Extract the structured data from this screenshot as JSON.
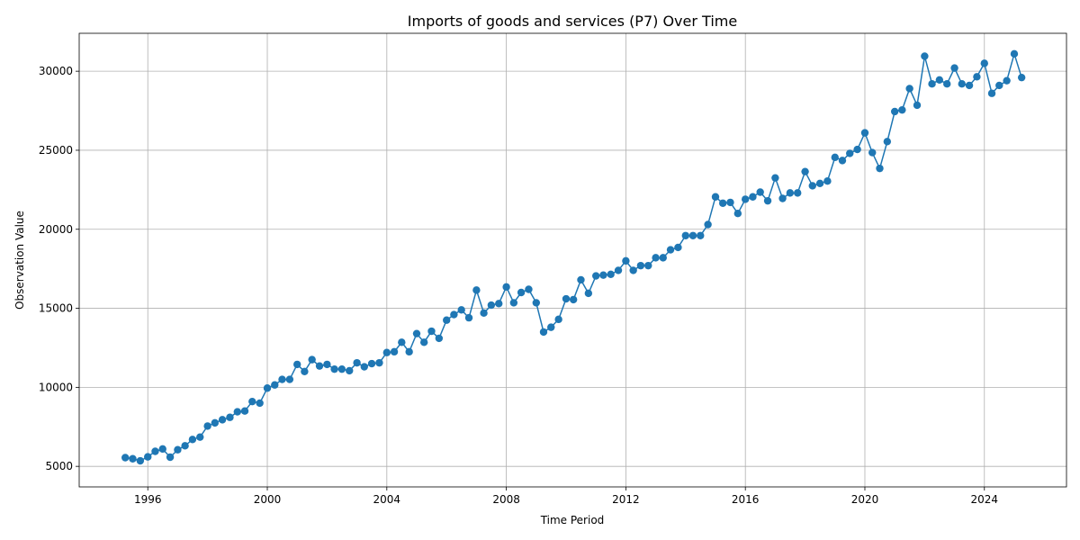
{
  "chart_data": {
    "type": "line",
    "title": "Imports of goods and services (P7) Over Time",
    "xlabel": "Time Period",
    "ylabel": "Observation Value",
    "x_ticks": [
      1996,
      2000,
      2004,
      2008,
      2012,
      2016,
      2020,
      2024
    ],
    "y_ticks": [
      5000,
      10000,
      15000,
      20000,
      25000,
      30000
    ],
    "xlim": [
      "1993-09-15",
      "2026-10-01"
    ],
    "ylim": [
      3700,
      32400
    ],
    "grid": true,
    "legend": "none",
    "color": "#1f77b4",
    "marker": "circle",
    "series": [
      {
        "x": [
          "1995-04-01",
          "1995-07-01",
          "1995-10-01",
          "1996-01-01",
          "1996-04-01",
          "1996-07-01",
          "1996-10-01",
          "1997-01-01",
          "1997-04-01",
          "1997-07-01",
          "1997-10-01",
          "1998-01-01",
          "1998-04-01",
          "1998-07-01",
          "1998-10-01",
          "1999-01-01",
          "1999-04-01",
          "1999-07-01",
          "1999-10-01",
          "2000-01-01",
          "2000-04-01",
          "2000-07-01",
          "2000-10-01",
          "2001-01-01",
          "2001-04-01",
          "2001-07-01",
          "2001-10-01",
          "2002-01-01",
          "2002-04-01",
          "2002-07-01",
          "2002-10-01",
          "2003-01-01",
          "2003-04-01",
          "2003-07-01",
          "2003-10-01",
          "2004-01-01",
          "2004-04-01",
          "2004-07-01",
          "2004-10-01",
          "2005-01-01",
          "2005-04-01",
          "2005-07-01",
          "2005-10-01",
          "2006-01-01",
          "2006-04-01",
          "2006-07-01",
          "2006-10-01",
          "2007-01-01",
          "2007-04-01",
          "2007-07-01",
          "2007-10-01",
          "2008-01-01",
          "2008-04-01",
          "2008-07-01",
          "2008-10-01",
          "2009-01-01",
          "2009-04-01",
          "2009-07-01",
          "2009-10-01",
          "2010-01-01",
          "2010-04-01",
          "2010-07-01",
          "2010-10-01",
          "2011-01-01",
          "2011-04-01",
          "2011-07-01",
          "2011-10-01",
          "2012-01-01",
          "2012-04-01",
          "2012-07-01",
          "2012-10-01",
          "2013-01-01",
          "2013-04-01",
          "2013-07-01",
          "2013-10-01",
          "2014-01-01",
          "2014-04-01",
          "2014-07-01",
          "2014-10-01",
          "2015-01-01",
          "2015-04-01",
          "2015-07-01",
          "2015-10-01",
          "2016-01-01",
          "2016-04-01",
          "2016-07-01",
          "2016-10-01",
          "2017-01-01",
          "2017-04-01",
          "2017-07-01",
          "2017-10-01",
          "2018-01-01",
          "2018-04-01",
          "2018-07-01",
          "2018-10-01",
          "2019-01-01",
          "2019-04-01",
          "2019-07-01",
          "2019-10-01",
          "2020-01-01",
          "2020-04-01",
          "2020-07-01",
          "2020-10-01",
          "2021-01-01",
          "2021-04-01",
          "2021-07-01",
          "2021-10-01",
          "2022-01-01",
          "2022-04-01",
          "2022-07-01",
          "2022-10-01",
          "2023-01-01",
          "2023-04-01",
          "2023-07-01",
          "2023-10-01",
          "2024-01-01",
          "2024-04-01",
          "2024-07-01",
          "2024-10-01",
          "2025-01-01",
          "2025-04-01"
        ],
        "values": [
          5550,
          5480,
          5350,
          5600,
          5950,
          6100,
          5580,
          6050,
          6300,
          6700,
          6850,
          7550,
          7750,
          7950,
          8100,
          8450,
          8500,
          9100,
          9000,
          9950,
          10150,
          10500,
          10500,
          11450,
          11000,
          11750,
          11350,
          11450,
          11150,
          11150,
          11050,
          11550,
          11300,
          11500,
          11550,
          12200,
          12250,
          12850,
          12250,
          13400,
          12850,
          13550,
          13100,
          14250,
          14600,
          14900,
          14400,
          16150,
          14700,
          15200,
          15300,
          16350,
          15350,
          16000,
          16200,
          15350,
          13500,
          13800,
          14300,
          15600,
          15550,
          16800,
          15950,
          17050,
          17100,
          17150,
          17400,
          18000,
          17400,
          17700,
          17700,
          18200,
          18200,
          18700,
          18850,
          19600,
          19600,
          19600,
          20300,
          22050,
          21650,
          21700,
          21000,
          21900,
          22050,
          22350,
          21800,
          23250,
          21950,
          22300,
          22300,
          23650,
          22750,
          22900,
          23050,
          24550,
          24350,
          24800,
          25050,
          26100,
          24850,
          23850,
          25550,
          27450,
          27550,
          28900,
          27850,
          30950,
          29200,
          29450,
          29200,
          30200,
          29200,
          29100,
          29650,
          30500,
          28600,
          29100,
          29400,
          31100,
          29600
        ]
      }
    ]
  }
}
